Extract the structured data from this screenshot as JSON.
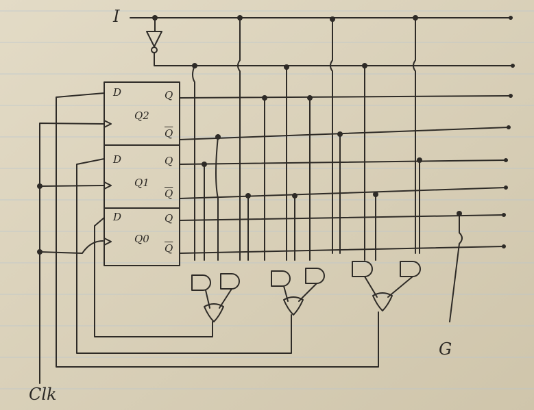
{
  "labels": {
    "input": "I",
    "clock": "Clk",
    "output": "G"
  },
  "flip_flops": [
    {
      "name": "Q2",
      "d": "D",
      "q": "Q",
      "qbar": "Q"
    },
    {
      "name": "Q1",
      "d": "D",
      "q": "Q",
      "qbar": "Q"
    },
    {
      "name": "Q0",
      "d": "D",
      "q": "Q",
      "qbar": "Q"
    }
  ],
  "colors": {
    "paper": "#dcd3bc",
    "ink": "#2e2b27",
    "rule": "#b6c7d3"
  }
}
